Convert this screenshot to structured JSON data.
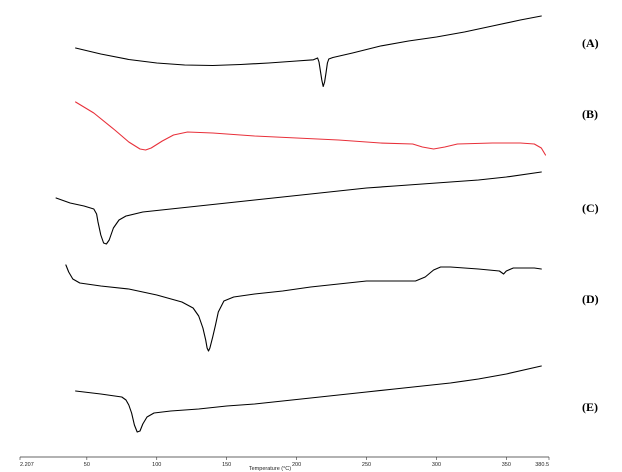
{
  "chart_data": {
    "type": "line",
    "title": "",
    "xlabel": "Temperature (°C)",
    "ylabel": "",
    "x_ticks": [
      {
        "value": 2.207,
        "label": "2.207"
      },
      {
        "value": 50,
        "label": "50"
      },
      {
        "value": 100,
        "label": "100"
      },
      {
        "value": 150,
        "label": "150"
      },
      {
        "value": 200,
        "label": "200"
      },
      {
        "value": 250,
        "label": "250"
      },
      {
        "value": 300,
        "label": "300"
      },
      {
        "value": 350,
        "label": "350"
      },
      {
        "value": 380.5,
        "label": "380.5"
      }
    ],
    "xlim": [
      2.207,
      380.5
    ],
    "grid": false,
    "series": [
      {
        "name": "(A)",
        "color": "#000000",
        "points": [
          [
            42,
            48
          ],
          [
            60,
            54
          ],
          [
            80,
            59.5
          ],
          [
            100,
            63
          ],
          [
            120,
            65
          ],
          [
            140,
            65.5
          ],
          [
            160,
            64.5
          ],
          [
            180,
            63
          ],
          [
            200,
            61
          ],
          [
            212,
            59.8
          ],
          [
            215,
            58
          ],
          [
            216,
            62
          ],
          [
            217,
            71
          ],
          [
            218,
            80
          ],
          [
            219,
            86.5
          ],
          [
            220,
            82
          ],
          [
            221,
            73
          ],
          [
            222,
            63
          ],
          [
            223,
            59
          ],
          [
            226,
            57.5
          ],
          [
            240,
            53
          ],
          [
            260,
            46
          ],
          [
            280,
            41
          ],
          [
            300,
            37
          ],
          [
            320,
            32
          ],
          [
            340,
            26
          ],
          [
            360,
            20
          ],
          [
            375,
            16
          ]
        ]
      },
      {
        "name": "(B)",
        "color": "#e8303a",
        "points": [
          [
            42,
            102
          ],
          [
            55,
            113
          ],
          [
            70,
            130
          ],
          [
            80,
            142
          ],
          [
            88,
            149
          ],
          [
            92,
            150
          ],
          [
            96,
            148
          ],
          [
            104,
            141
          ],
          [
            112,
            135
          ],
          [
            122,
            132
          ],
          [
            140,
            133
          ],
          [
            170,
            136
          ],
          [
            200,
            138
          ],
          [
            230,
            140
          ],
          [
            260,
            143
          ],
          [
            283,
            144
          ],
          [
            290,
            147
          ],
          [
            298,
            149
          ],
          [
            306,
            147
          ],
          [
            315,
            144
          ],
          [
            340,
            143
          ],
          [
            360,
            143
          ],
          [
            370,
            144
          ],
          [
            375,
            148
          ],
          [
            378,
            155
          ]
        ]
      },
      {
        "name": "(C)",
        "color": "#000000",
        "points": [
          [
            28,
            198
          ],
          [
            38,
            203
          ],
          [
            48,
            206
          ],
          [
            55,
            209
          ],
          [
            57,
            214
          ],
          [
            58,
            222
          ],
          [
            60,
            235
          ],
          [
            62,
            243
          ],
          [
            64,
            244
          ],
          [
            66,
            240
          ],
          [
            69,
            228
          ],
          [
            73,
            220
          ],
          [
            78,
            216
          ],
          [
            90,
            212
          ],
          [
            110,
            209
          ],
          [
            130,
            206
          ],
          [
            150,
            203
          ],
          [
            170,
            200
          ],
          [
            190,
            197
          ],
          [
            210,
            194
          ],
          [
            230,
            191
          ],
          [
            250,
            188
          ],
          [
            270,
            186
          ],
          [
            290,
            184
          ],
          [
            310,
            182
          ],
          [
            330,
            180
          ],
          [
            350,
            177
          ],
          [
            375,
            172
          ]
        ]
      },
      {
        "name": "(D)",
        "color": "#000000",
        "points": [
          [
            35,
            265
          ],
          [
            37,
            272
          ],
          [
            40,
            279
          ],
          [
            45,
            283
          ],
          [
            60,
            286
          ],
          [
            80,
            289
          ],
          [
            100,
            295
          ],
          [
            118,
            302
          ],
          [
            126,
            308
          ],
          [
            130,
            316
          ],
          [
            133,
            328
          ],
          [
            135,
            340
          ],
          [
            136,
            348
          ],
          [
            137,
            351
          ],
          [
            138,
            348
          ],
          [
            140,
            337
          ],
          [
            142,
            325
          ],
          [
            144,
            312
          ],
          [
            148,
            301
          ],
          [
            155,
            297
          ],
          [
            170,
            294
          ],
          [
            190,
            291
          ],
          [
            210,
            287
          ],
          [
            230,
            284
          ],
          [
            250,
            281
          ],
          [
            270,
            281
          ],
          [
            285,
            281
          ],
          [
            292,
            277
          ],
          [
            298,
            270
          ],
          [
            303,
            267
          ],
          [
            310,
            267
          ],
          [
            330,
            269
          ],
          [
            345,
            271
          ],
          [
            348,
            274
          ],
          [
            350,
            271
          ],
          [
            355,
            268
          ],
          [
            370,
            268
          ],
          [
            375,
            269
          ]
        ]
      },
      {
        "name": "(E)",
        "color": "#000000",
        "points": [
          [
            42,
            391
          ],
          [
            60,
            394
          ],
          [
            75,
            397
          ],
          [
            78,
            400
          ],
          [
            80,
            405
          ],
          [
            82,
            413
          ],
          [
            84,
            425
          ],
          [
            86,
            432
          ],
          [
            88,
            431
          ],
          [
            90,
            424
          ],
          [
            93,
            417
          ],
          [
            98,
            413
          ],
          [
            110,
            411
          ],
          [
            130,
            409
          ],
          [
            150,
            406
          ],
          [
            170,
            404
          ],
          [
            190,
            401
          ],
          [
            210,
            398
          ],
          [
            230,
            395
          ],
          [
            250,
            392
          ],
          [
            270,
            389
          ],
          [
            290,
            386
          ],
          [
            310,
            383
          ],
          [
            330,
            379
          ],
          [
            350,
            374
          ],
          [
            375,
            366
          ]
        ]
      }
    ]
  }
}
